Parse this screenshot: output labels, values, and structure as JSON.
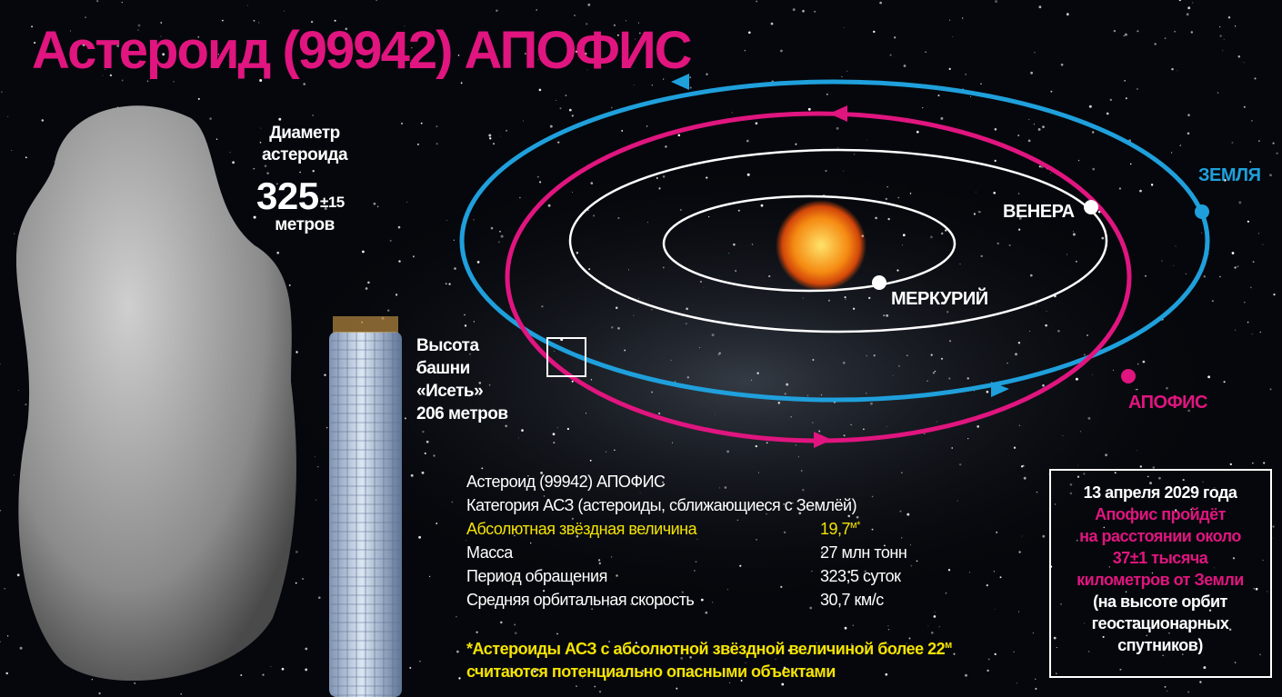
{
  "title": "Астероид (99942) АПОФИС",
  "diameter": {
    "lines": [
      "Диаметр",
      "астероида"
    ],
    "value": "325",
    "tolerance": "±15",
    "unit": "метров"
  },
  "tower": {
    "lines": [
      "Высота",
      "башни",
      "«Исеть»",
      "206 метров"
    ]
  },
  "orbits": {
    "venus": "ВЕНЕРА",
    "mercury": "МЕРКУРИЙ",
    "earth": "ЗЕМЛЯ",
    "apophis": "АПОФИС"
  },
  "facts": {
    "heading": "Астероид (99942) АПОФИС",
    "category": "Категория АСЗ (астероиды, сближающиеся с Землёй)",
    "rows": [
      [
        "Абсолютная звёздная величина",
        "19,7",
        "м*"
      ],
      [
        "Масса",
        "27 млн тонн"
      ],
      [
        "Период обращения",
        "323,5 суток"
      ],
      [
        "Средняя орбитальная скорость",
        "30,7 км/с"
      ]
    ]
  },
  "footnote": {
    "line1": "*Астероиды АСЗ с абсолютной звёздной величиной более 22",
    "line1_sup": "м",
    "line2": "считаются потенциально опасными объектами"
  },
  "approach": {
    "date": "13 апреля 2029 года",
    "highlight": [
      "Апофис пройдёт",
      "на расстоянии около",
      "37±1 тысяча",
      "километров от Земли"
    ],
    "note": [
      "(на высоте орбит",
      "геостационарных",
      "спутников)"
    ]
  }
}
